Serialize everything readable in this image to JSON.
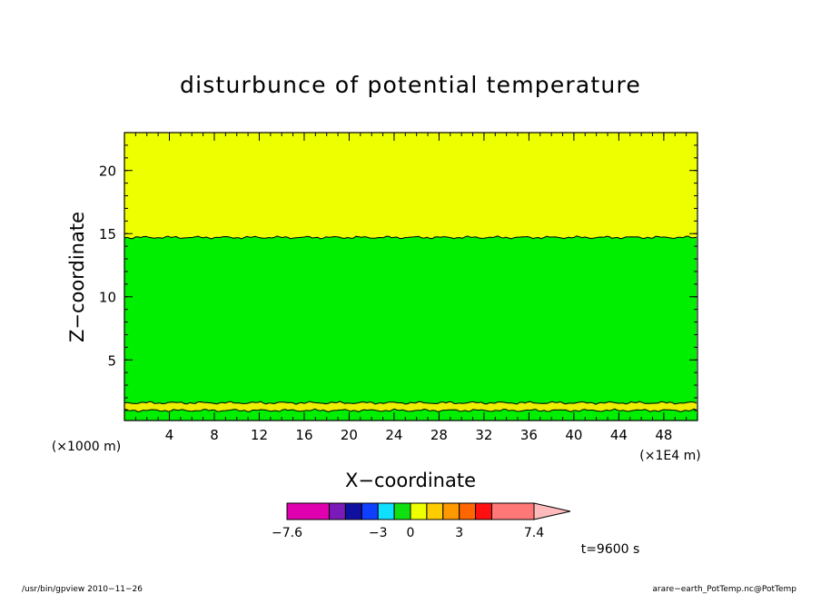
{
  "chart_data": {
    "type": "heatmap",
    "title": "disturbunce of potential temperature",
    "xlabel": "X−coordinate",
    "ylabel": "Z−coordinate",
    "x_unit": "(×1E4 m)",
    "y_unit": "(×1000 m)",
    "xlim": [
      0,
      51
    ],
    "ylim": [
      0.2,
      23
    ],
    "x_ticks": [
      "4",
      "8",
      "12",
      "16",
      "20",
      "24",
      "28",
      "32",
      "36",
      "40",
      "44",
      "48"
    ],
    "y_ticks": [
      "5",
      "10",
      "15",
      "20"
    ],
    "regions": [
      {
        "z_from": 0.2,
        "z_to": 1.0,
        "color": "#00ee00"
      },
      {
        "z_from": 1.0,
        "z_to": 1.6,
        "color": "#eeee00"
      },
      {
        "z_from": 1.6,
        "z_to": 14.7,
        "color": "#00ee00"
      },
      {
        "z_from": 14.7,
        "z_to": 23.0,
        "color": "#eeff00"
      }
    ],
    "colorbar": {
      "colors": [
        "#e000b0",
        "#7a1ab8",
        "#1010a0",
        "#1040ff",
        "#10e0ff",
        "#10e010",
        "#eeff00",
        "#ffcc00",
        "#ff9900",
        "#ff6600",
        "#ff1010",
        "#ff7777",
        "#ffbbbb"
      ],
      "labels": [
        "−7.6",
        "−3",
        "0",
        "3",
        "7.4"
      ]
    },
    "time_label": "t=9600 s"
  },
  "footer": {
    "left": "/usr/bin/gpview  2010−11−26",
    "right": "arare−earth_PotTemp.nc@PotTemp"
  }
}
